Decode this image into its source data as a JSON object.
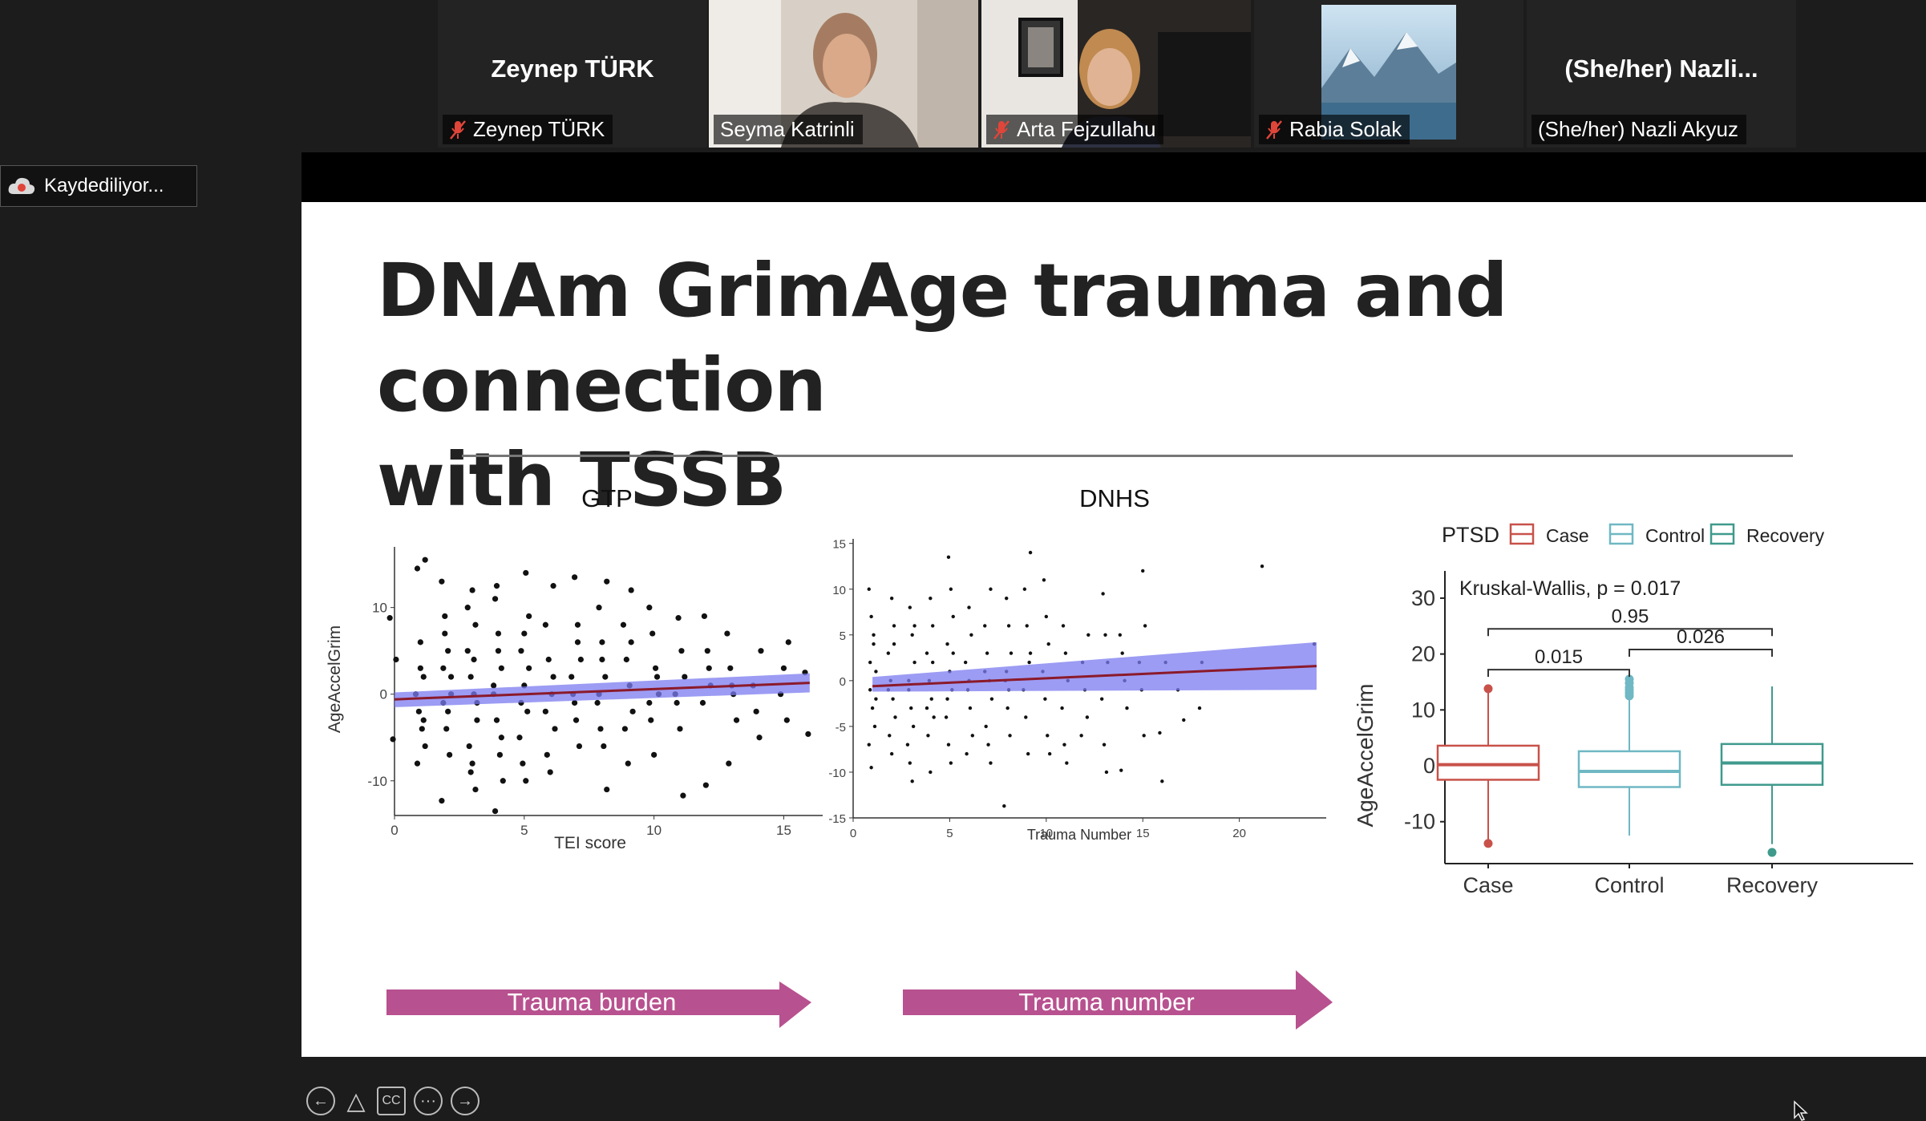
{
  "participants": [
    {
      "big_name": "Zeynep TÜRK",
      "label": "Zeynep TÜRK",
      "muted": true,
      "video": false
    },
    {
      "big_name": "",
      "label": "Seyma Katrinli",
      "muted": false,
      "video": true,
      "active": true
    },
    {
      "big_name": "",
      "label": "Arta Fejzullahu",
      "muted": true,
      "video": true
    },
    {
      "big_name": "",
      "label": "Rabia Solak",
      "muted": true,
      "video": "avatar-mountain"
    },
    {
      "big_name": "(She/her)  Nazli...",
      "label": "(She/her) Nazli Akyuz",
      "muted": false,
      "video": false
    }
  ],
  "recording": {
    "label": "Kaydediliyor..."
  },
  "slide": {
    "title_line1": "DNAm GrimAge trauma and connection",
    "title_line2": "with TSSB",
    "arrow1": "Trauma burden",
    "arrow2": "Trauma number"
  },
  "colors": {
    "case": "#c8524a",
    "control": "#6fb8c4",
    "recovery": "#3f9a8c",
    "band": "#7b7bf0",
    "line": "#8b1a2a",
    "arrow": "#b8518f",
    "active_border": "#8dc63f"
  },
  "chart_data": [
    {
      "type": "scatter",
      "title": "GTP",
      "xlabel": "TEI score",
      "ylabel": "AgeAccelGrim",
      "xlim": [
        0,
        16.5
      ],
      "ylim": [
        -14,
        17
      ],
      "x_ticks": [
        0,
        5,
        10,
        15
      ],
      "y_ticks": [
        -10,
        0,
        10
      ],
      "fit": {
        "x": [
          0,
          16
        ],
        "y": [
          -0.6,
          1.3
        ],
        "band_low": [
          -1.5,
          0.2
        ],
        "band_high": [
          0.2,
          2.4
        ]
      },
      "points": [
        [
          0,
          8.8
        ],
        [
          0,
          -5.2
        ],
        [
          0,
          4
        ],
        [
          1,
          15.5
        ],
        [
          1,
          14.5
        ],
        [
          1,
          6
        ],
        [
          1,
          2
        ],
        [
          1,
          0
        ],
        [
          1,
          -2
        ],
        [
          1,
          -4
        ],
        [
          1,
          -6
        ],
        [
          1,
          -8
        ],
        [
          1,
          3
        ],
        [
          1,
          -3
        ],
        [
          2,
          13
        ],
        [
          2,
          9
        ],
        [
          2,
          5
        ],
        [
          2,
          2
        ],
        [
          2,
          -1
        ],
        [
          2,
          -4
        ],
        [
          2,
          -7
        ],
        [
          2,
          -12.3
        ],
        [
          2,
          7
        ],
        [
          2,
          -2
        ],
        [
          2,
          0
        ],
        [
          2,
          3
        ],
        [
          3,
          12
        ],
        [
          3,
          8
        ],
        [
          3,
          5
        ],
        [
          3,
          2
        ],
        [
          3,
          0
        ],
        [
          3,
          -3
        ],
        [
          3,
          -6
        ],
        [
          3,
          -8
        ],
        [
          3,
          -11
        ],
        [
          3,
          10
        ],
        [
          3,
          -9
        ],
        [
          3,
          4
        ],
        [
          3,
          -1
        ],
        [
          4,
          11
        ],
        [
          4,
          7
        ],
        [
          4,
          3
        ],
        [
          4,
          0
        ],
        [
          4,
          -3
        ],
        [
          4,
          -7
        ],
        [
          4,
          -10
        ],
        [
          4,
          -13.5
        ],
        [
          4,
          5
        ],
        [
          4,
          -5
        ],
        [
          4,
          1
        ],
        [
          4,
          12.5
        ],
        [
          5,
          14
        ],
        [
          5,
          9
        ],
        [
          5,
          5
        ],
        [
          5,
          1
        ],
        [
          5,
          -2
        ],
        [
          5,
          -5
        ],
        [
          5,
          -8
        ],
        [
          5,
          -10
        ],
        [
          5,
          3
        ],
        [
          5,
          -1
        ],
        [
          5,
          7
        ],
        [
          6,
          12.5
        ],
        [
          6,
          8
        ],
        [
          6,
          4
        ],
        [
          6,
          0
        ],
        [
          6,
          -4
        ],
        [
          6,
          -7
        ],
        [
          6,
          -9
        ],
        [
          6,
          2
        ],
        [
          6,
          -2
        ],
        [
          7,
          13.5
        ],
        [
          7,
          8
        ],
        [
          7,
          4
        ],
        [
          7,
          0
        ],
        [
          7,
          -3
        ],
        [
          7,
          -6
        ],
        [
          7,
          2
        ],
        [
          7,
          -1
        ],
        [
          7,
          6
        ],
        [
          8,
          13
        ],
        [
          8,
          10
        ],
        [
          8,
          6
        ],
        [
          8,
          2
        ],
        [
          8,
          -1
        ],
        [
          8,
          -4
        ],
        [
          8,
          -6
        ],
        [
          8,
          -11
        ],
        [
          8,
          0
        ],
        [
          8,
          4
        ],
        [
          9,
          12
        ],
        [
          9,
          8
        ],
        [
          9,
          4
        ],
        [
          9,
          1
        ],
        [
          9,
          -2
        ],
        [
          9,
          -4
        ],
        [
          9,
          -8
        ],
        [
          9,
          6
        ],
        [
          10,
          10
        ],
        [
          10,
          7
        ],
        [
          10,
          3
        ],
        [
          10,
          0
        ],
        [
          10,
          -3
        ],
        [
          10,
          -7
        ],
        [
          10,
          2
        ],
        [
          10,
          -1
        ],
        [
          11,
          8.8
        ],
        [
          11,
          5
        ],
        [
          11,
          2
        ],
        [
          11,
          -1
        ],
        [
          11,
          -4
        ],
        [
          11,
          -11.7
        ],
        [
          11,
          0
        ],
        [
          12,
          9
        ],
        [
          12,
          5
        ],
        [
          12,
          1
        ],
        [
          12,
          -1
        ],
        [
          12,
          -10.5
        ],
        [
          12,
          3
        ],
        [
          13,
          7
        ],
        [
          13,
          3
        ],
        [
          13,
          0
        ],
        [
          13,
          -3
        ],
        [
          13,
          -8
        ],
        [
          13,
          1
        ],
        [
          14,
          5
        ],
        [
          14,
          1
        ],
        [
          14,
          -2
        ],
        [
          14,
          -5
        ],
        [
          15,
          6
        ],
        [
          15,
          0
        ],
        [
          15,
          3
        ],
        [
          15,
          -3
        ],
        [
          16,
          2.5
        ],
        [
          16,
          -4.6
        ]
      ]
    },
    {
      "type": "scatter",
      "title": "DNHS",
      "xlabel": "Trauma Number",
      "ylabel": "AgeAccelGrim",
      "xlim": [
        0,
        24.5
      ],
      "ylim": [
        -15,
        15.5
      ],
      "x_ticks": [
        0,
        5,
        10,
        15,
        20
      ],
      "y_ticks": [
        -15,
        -10,
        -5,
        0,
        5,
        10,
        15
      ],
      "fit": {
        "x": [
          1,
          24
        ],
        "y": [
          -0.6,
          1.6
        ],
        "band_low": [
          -1.2,
          -1.0
        ],
        "band_high": [
          0.4,
          4.2
        ]
      },
      "points": [
        [
          1,
          10
        ],
        [
          1,
          7
        ],
        [
          1,
          4
        ],
        [
          1,
          1
        ],
        [
          1,
          -1
        ],
        [
          1,
          -3
        ],
        [
          1,
          -5
        ],
        [
          1,
          -7
        ],
        [
          1,
          -9.5
        ],
        [
          1,
          5
        ],
        [
          1,
          -2
        ],
        [
          1,
          2
        ],
        [
          2,
          9
        ],
        [
          2,
          6
        ],
        [
          2,
          3
        ],
        [
          2,
          0
        ],
        [
          2,
          -2
        ],
        [
          2,
          -4
        ],
        [
          2,
          -6
        ],
        [
          2,
          -8
        ],
        [
          2,
          4
        ],
        [
          2,
          -1
        ],
        [
          3,
          8
        ],
        [
          3,
          5
        ],
        [
          3,
          2
        ],
        [
          3,
          -1
        ],
        [
          3,
          -3
        ],
        [
          3,
          -5
        ],
        [
          3,
          -7
        ],
        [
          3,
          -9
        ],
        [
          3,
          -11
        ],
        [
          3,
          6
        ],
        [
          3,
          0
        ],
        [
          4,
          9
        ],
        [
          4,
          6
        ],
        [
          4,
          3
        ],
        [
          4,
          0
        ],
        [
          4,
          -2
        ],
        [
          4,
          -4
        ],
        [
          4,
          -6
        ],
        [
          4,
          -10
        ],
        [
          4,
          2
        ],
        [
          4,
          -3
        ],
        [
          5,
          13.5
        ],
        [
          5,
          10
        ],
        [
          5,
          7
        ],
        [
          5,
          4
        ],
        [
          5,
          1
        ],
        [
          5,
          -1
        ],
        [
          5,
          -4
        ],
        [
          5,
          -7
        ],
        [
          5,
          -9
        ],
        [
          5,
          3
        ],
        [
          5,
          -2
        ],
        [
          6,
          8
        ],
        [
          6,
          5
        ],
        [
          6,
          2
        ],
        [
          6,
          -1
        ],
        [
          6,
          -3
        ],
        [
          6,
          -6
        ],
        [
          6,
          -8
        ],
        [
          6,
          0
        ],
        [
          7,
          10
        ],
        [
          7,
          6
        ],
        [
          7,
          3
        ],
        [
          7,
          0
        ],
        [
          7,
          -2
        ],
        [
          7,
          -5
        ],
        [
          7,
          -7
        ],
        [
          7,
          -9
        ],
        [
          7,
          1
        ],
        [
          8,
          9
        ],
        [
          8,
          6
        ],
        [
          8,
          3
        ],
        [
          8,
          0
        ],
        [
          8,
          -3
        ],
        [
          8,
          -6
        ],
        [
          8,
          -13.7
        ],
        [
          8,
          1
        ],
        [
          8,
          -1
        ],
        [
          9,
          14
        ],
        [
          9,
          10
        ],
        [
          9,
          6
        ],
        [
          9,
          2
        ],
        [
          9,
          -1
        ],
        [
          9,
          -4
        ],
        [
          9,
          -8
        ],
        [
          9,
          3
        ],
        [
          10,
          11
        ],
        [
          10,
          7
        ],
        [
          10,
          4
        ],
        [
          10,
          1
        ],
        [
          10,
          -2
        ],
        [
          10,
          -6
        ],
        [
          10,
          -8
        ],
        [
          11,
          6
        ],
        [
          11,
          3
        ],
        [
          11,
          0
        ],
        [
          11,
          -3
        ],
        [
          11,
          -7
        ],
        [
          11,
          -9
        ],
        [
          12,
          5
        ],
        [
          12,
          2
        ],
        [
          12,
          -1
        ],
        [
          12,
          -4
        ],
        [
          12,
          -6
        ],
        [
          13,
          9.5
        ],
        [
          13,
          5
        ],
        [
          13,
          2
        ],
        [
          13,
          -2
        ],
        [
          13,
          -7
        ],
        [
          13,
          -10
        ],
        [
          14,
          5
        ],
        [
          14,
          3
        ],
        [
          14,
          0
        ],
        [
          14,
          -3
        ],
        [
          14,
          -9.8
        ],
        [
          15,
          12
        ],
        [
          15,
          6
        ],
        [
          15,
          2
        ],
        [
          15,
          -1
        ],
        [
          15,
          -6
        ],
        [
          16,
          2
        ],
        [
          16,
          -5.7
        ],
        [
          16,
          -11
        ],
        [
          17,
          -4.3
        ],
        [
          17,
          -1
        ],
        [
          18,
          -3
        ],
        [
          18,
          2
        ],
        [
          21,
          12.5
        ],
        [
          24,
          4
        ]
      ]
    },
    {
      "type": "box",
      "legend_title": "PTSD",
      "legend_position": "top",
      "categories": [
        "Case",
        "Control",
        "Recovery"
      ],
      "series": [
        {
          "name": "Case"
        },
        {
          "name": "Control"
        },
        {
          "name": "Recovery"
        }
      ],
      "ylabel": "AgeAccelGrim",
      "xlabel": "",
      "ylim": [
        -17.5,
        32
      ],
      "y_ticks": [
        -10,
        0,
        10,
        20,
        30
      ],
      "boxes": [
        {
          "name": "Case",
          "min": -13.5,
          "q1": -2.5,
          "median": 0.2,
          "q3": 3.6,
          "max": 13.5,
          "outliers": [
            13.8,
            -13.9
          ]
        },
        {
          "name": "Control",
          "min": -12.5,
          "q1": -3.8,
          "median": -1.0,
          "q3": 2.6,
          "max": 12.0,
          "outliers": [
            12.5,
            13.0,
            13.5,
            14.0,
            14.8,
            15.5
          ]
        },
        {
          "name": "Recovery",
          "min": -14.0,
          "q1": -3.4,
          "median": 0.5,
          "q3": 3.9,
          "max": 14.2,
          "outliers": [
            -15.5
          ]
        }
      ],
      "annotation": "Kruskal-Wallis, p = 0.017",
      "comparisons": [
        {
          "from": "Case",
          "to": "Recovery",
          "label": "0.95",
          "y": 24.5
        },
        {
          "from": "Control",
          "to": "Recovery",
          "label": "0.026",
          "y": 20.8
        },
        {
          "from": "Case",
          "to": "Control",
          "label": "0.015",
          "y": 17.2
        }
      ]
    }
  ],
  "controls": {
    "back": "←",
    "pointer": "△",
    "cc": "CC",
    "more": "···",
    "next": "→"
  }
}
